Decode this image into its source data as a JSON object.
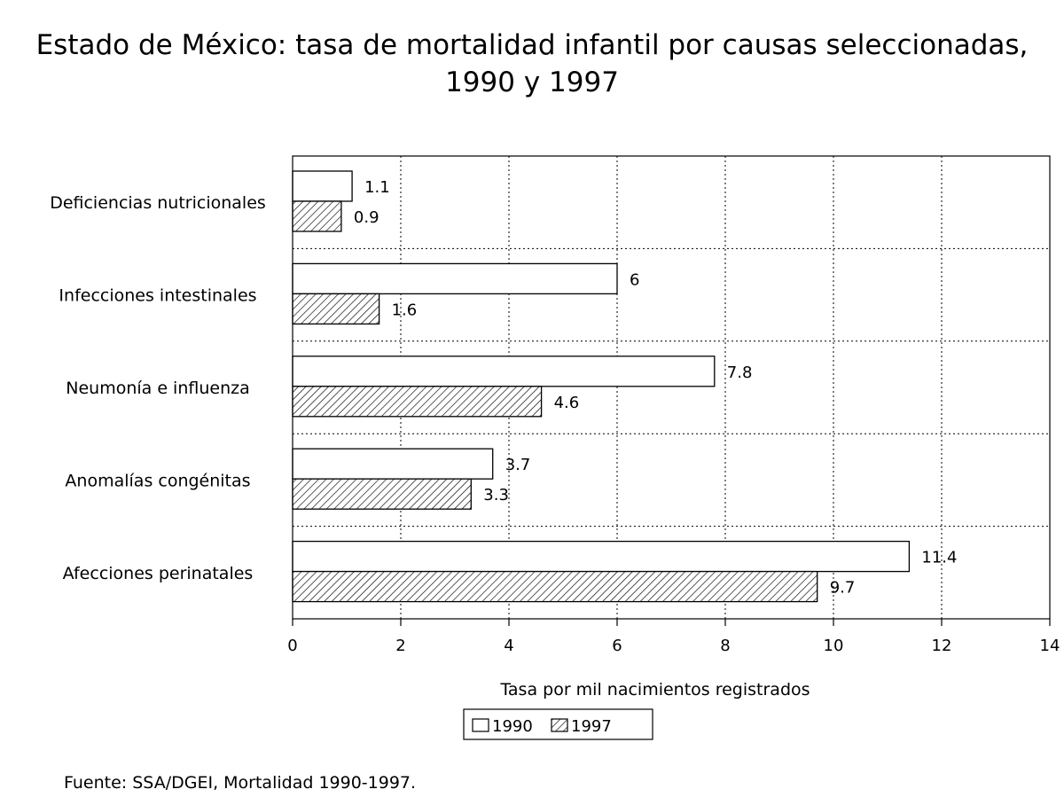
{
  "chart_data": {
    "type": "bar",
    "orientation": "horizontal",
    "title": "Estado de México: tasa de mortalidad infantil por causas seleccionadas, 1990 y 1997",
    "categories": [
      "Deficiencias nutricionales",
      "Infecciones intestinales",
      "Neumonía e influenza",
      "Anomalías congénitas",
      "Afecciones perinatales"
    ],
    "series": [
      {
        "name": "1990",
        "values": [
          1.1,
          6,
          7.8,
          3.7,
          11.4
        ],
        "labels": [
          "1.1",
          "6",
          "7.8",
          "3.7",
          "11.4"
        ],
        "fill": "#ffffff"
      },
      {
        "name": "1997",
        "values": [
          0.9,
          1.6,
          4.6,
          3.3,
          9.7
        ],
        "labels": [
          "0.9",
          "1.6",
          "4.6",
          "3.3",
          "9.7"
        ],
        "fill": "hatched"
      }
    ],
    "xlabel": "Tasa por mil nacimientos registrados",
    "ylabel": "",
    "xlim": [
      0,
      14
    ],
    "xticks": [
      "0",
      "2",
      "4",
      "6",
      "8",
      "10",
      "12",
      "14"
    ],
    "grid": "dotted",
    "legend_position": "bottom-center"
  },
  "source": "Fuente: SSA/DGEI, Mortalidad 1990-1997."
}
